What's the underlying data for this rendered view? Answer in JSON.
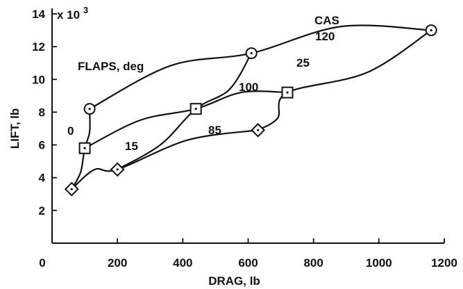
{
  "chart_data": {
    "type": "line",
    "xlabel": "DRAG, lb",
    "ylabel": "LIFT, lb",
    "y_multiplier_label": "x 10",
    "y_multiplier_exponent": "3",
    "xlim": [
      0,
      1200
    ],
    "ylim": [
      0,
      14
    ],
    "x_ticks": [
      0,
      200,
      400,
      600,
      800,
      1000,
      1200
    ],
    "y_ticks": [
      2,
      4,
      6,
      8,
      10,
      12,
      14
    ],
    "grid": false,
    "flaps_title": "FLAPS, deg",
    "cas_title": "CAS",
    "flap_series": [
      {
        "name": "0",
        "marker": "circle",
        "x": [
          1160,
          610,
          115
        ],
        "y": [
          13.0,
          11.6,
          8.2
        ]
      },
      {
        "name": "15",
        "marker": "square",
        "x": [
          720,
          440,
          100
        ],
        "y": [
          9.2,
          8.2,
          5.8
        ]
      },
      {
        "name": "25",
        "marker": "diamond",
        "x": [
          630,
          200,
          60
        ],
        "y": [
          6.9,
          4.5,
          3.3
        ]
      }
    ],
    "cas_series": [
      {
        "name": "120",
        "points": [
          [
            1160,
            13.0
          ],
          [
            720,
            9.2
          ],
          [
            630,
            6.9
          ]
        ]
      },
      {
        "name": "100",
        "points": [
          [
            610,
            11.6
          ],
          [
            440,
            8.2
          ],
          [
            200,
            4.5
          ]
        ]
      },
      {
        "name": "85",
        "points": [
          [
            115,
            8.2
          ],
          [
            100,
            5.8
          ],
          [
            60,
            3.3
          ]
        ]
      }
    ]
  }
}
